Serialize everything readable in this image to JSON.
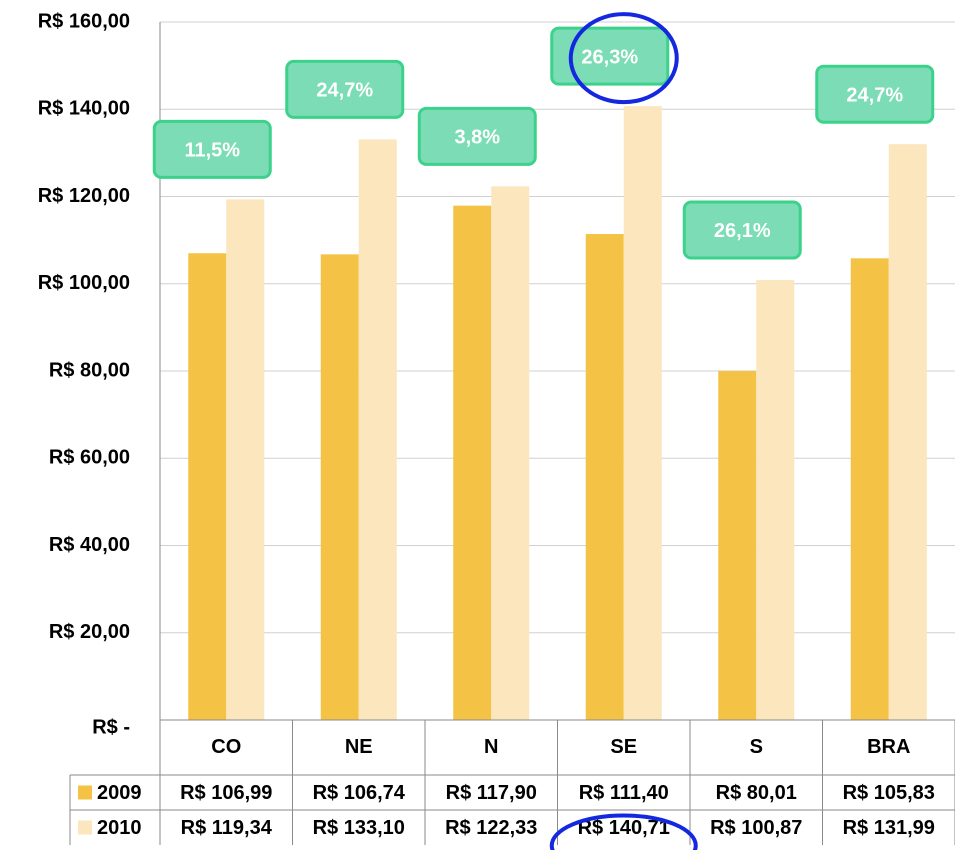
{
  "chart_data": {
    "type": "bar",
    "categories": [
      "CO",
      "NE",
      "N",
      "SE",
      "S",
      "BRA"
    ],
    "series": [
      {
        "name": "2009",
        "color": "#f4c345",
        "values": [
          106.99,
          106.74,
          117.9,
          111.4,
          80.01,
          105.83
        ],
        "value_labels": [
          "R$ 106,99",
          "R$ 106,74",
          "R$ 117,90",
          "R$ 111,40",
          "R$ 80,01",
          "R$ 105,83"
        ]
      },
      {
        "name": "2010",
        "color": "#fbe6bd",
        "values": [
          119.34,
          133.1,
          122.33,
          140.71,
          100.87,
          131.99
        ],
        "value_labels": [
          "R$ 119,34",
          "R$ 133,10",
          "R$ 122,33",
          "R$ 140,71",
          "R$ 100,87",
          "R$ 131,99"
        ]
      }
    ],
    "annotations": [
      "11,5%",
      "24,7%",
      "3,8%",
      "26,3%",
      "26,1%",
      "24,7%"
    ],
    "ylim": [
      0,
      160
    ],
    "yticks": [
      {
        "value": 0,
        "label": "R$ -"
      },
      {
        "value": 20,
        "label": "R$ 20,00"
      },
      {
        "value": 40,
        "label": "R$ 40,00"
      },
      {
        "value": 60,
        "label": "R$ 60,00"
      },
      {
        "value": 80,
        "label": "R$ 80,00"
      },
      {
        "value": 100,
        "label": "R$ 100,00"
      },
      {
        "value": 120,
        "label": "R$ 120,00"
      },
      {
        "value": 140,
        "label": "R$ 140,00"
      },
      {
        "value": 160,
        "label": "R$ 160,00"
      }
    ],
    "grid": true
  }
}
